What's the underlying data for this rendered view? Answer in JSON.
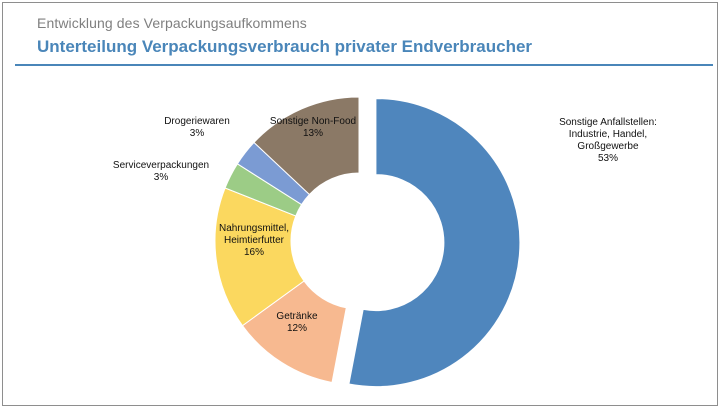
{
  "header": {
    "supertitle": "Entwicklung des Verpackungsaufkommens",
    "title": "Unterteilung Verpackungsverbrauch privater Endverbraucher"
  },
  "chart_data": {
    "type": "pie",
    "variant": "donut, first slice exploded",
    "title": "Unterteilung Verpackungsverbrauch privater Endverbraucher",
    "unit": "%",
    "slices": [
      {
        "label": "Sonstige Anfallstellen: Industrie, Handel, Großgewerbe",
        "label_lines": [
          "Sonstige Anfallstellen:",
          "Industrie, Handel,",
          "Großgewerbe"
        ],
        "value": 53,
        "value_label": "53%",
        "color": "#4f86bd"
      },
      {
        "label": "Getränke",
        "label_lines": [
          "Getränke"
        ],
        "value": 12,
        "value_label": "12%",
        "color": "#f7b990"
      },
      {
        "label": "Nahrungsmittel, Heimtierfutter",
        "label_lines": [
          "Nahrungsmittel,",
          "Heimtierfutter"
        ],
        "value": 16,
        "value_label": "16%",
        "color": "#fbd85f"
      },
      {
        "label": "Serviceverpackungen",
        "label_lines": [
          "Serviceverpackungen"
        ],
        "value": 3,
        "value_label": "3%",
        "color": "#9ccc86"
      },
      {
        "label": "Drogeriewaren",
        "label_lines": [
          "Drogeriewaren"
        ],
        "value": 3,
        "value_label": "3%",
        "color": "#7b9bd3"
      },
      {
        "label": "Sonstige Non-Food",
        "label_lines": [
          "Sonstige Non-Food"
        ],
        "value": 13,
        "value_label": "13%",
        "color": "#8b7966"
      }
    ]
  }
}
